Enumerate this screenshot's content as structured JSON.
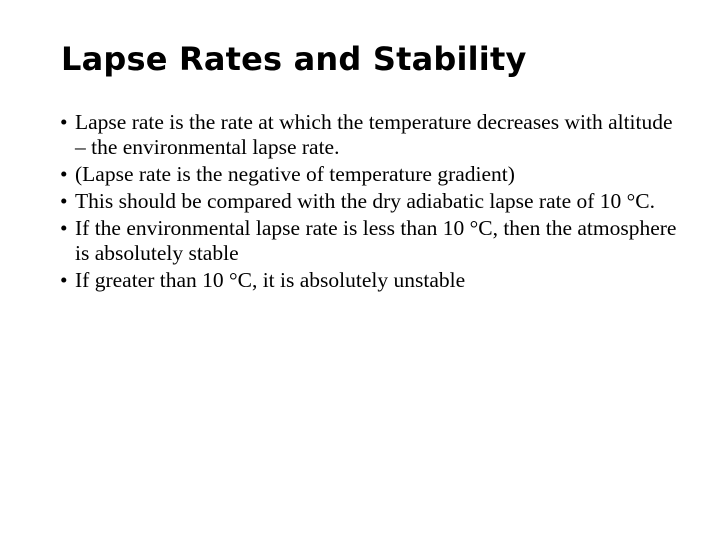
{
  "slide": {
    "title": "Lapse Rates and Stability",
    "bullet_marker": "•",
    "bullets": [
      {
        "text": "Lapse rate is the rate at which the temperature decreases with altitude – the environmental lapse rate."
      },
      {
        "text": "(Lapse rate is the negative of temperature gradient)"
      },
      {
        "text": "This should be compared with the dry adiabatic lapse rate of 10 °C."
      },
      {
        "text": "If the environmental lapse rate is less than 10 °C, then the atmosphere is absolutely stable"
      },
      {
        "text": "If greater than 10 °C, it is absolutely unstable"
      }
    ]
  }
}
